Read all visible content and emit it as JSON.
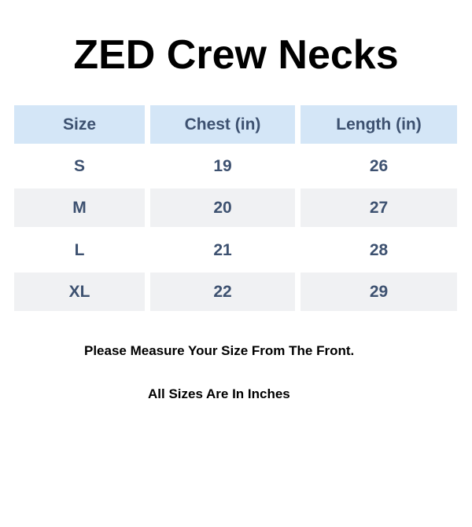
{
  "title": "ZED Crew Necks",
  "table": {
    "headers": [
      "Size",
      "Chest (in)",
      "Length (in)"
    ],
    "rows": [
      [
        "S",
        "19",
        "26"
      ],
      [
        "M",
        "20",
        "27"
      ],
      [
        "L",
        "21",
        "28"
      ],
      [
        "XL",
        "22",
        "29"
      ]
    ]
  },
  "notes": [
    "Please Measure Your Size From The Front.",
    "All Sizes Are In Inches"
  ],
  "colors": {
    "header_bg": "#d4e6f7",
    "alt_row_bg": "#f0f1f3",
    "text": "#3d5170"
  }
}
